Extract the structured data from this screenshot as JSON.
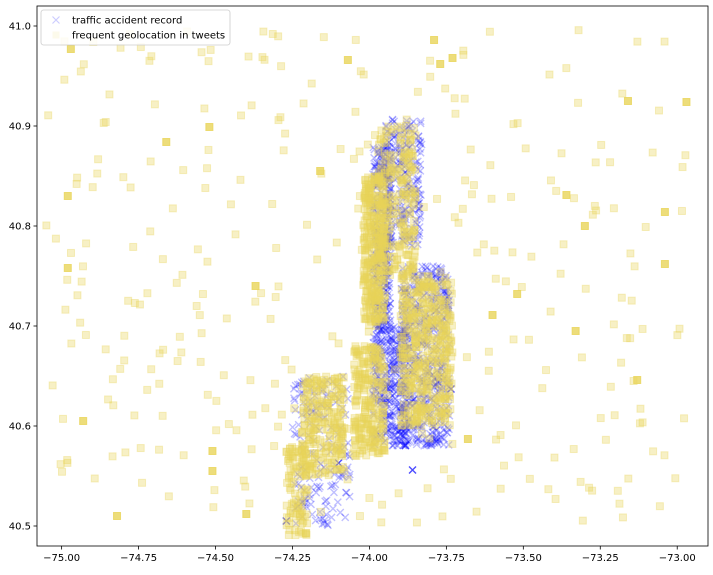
{
  "chart_data": {
    "type": "scatter",
    "title": "",
    "xlabel": "",
    "ylabel": "",
    "xlim": [
      -75.08,
      -72.9
    ],
    "ylim": [
      40.48,
      41.02
    ],
    "xticks": [
      -75.0,
      -74.75,
      -74.5,
      -74.25,
      -74.0,
      -73.75,
      -73.5,
      -73.25,
      -73.0
    ],
    "xtick_labels": [
      "−75.00",
      "−74.75",
      "−74.50",
      "−74.25",
      "−74.00",
      "−73.75",
      "−73.50",
      "−73.25",
      "−73.00"
    ],
    "yticks": [
      40.5,
      40.6,
      40.7,
      40.8,
      40.9,
      41.0
    ],
    "ytick_labels": [
      "40.5",
      "40.6",
      "40.7",
      "40.8",
      "40.9",
      "41.0"
    ],
    "grid": false,
    "legend_position": "upper-left",
    "series": [
      {
        "name": "traffic accident record",
        "marker": "x",
        "color": "#0000ff",
        "alpha": 0.25,
        "clusters": [
          {
            "x": [
              -73.99,
              -73.93
            ],
            "y": [
              40.7,
              40.88
            ],
            "n": 340
          },
          {
            "x": [
              -73.95,
              -73.83
            ],
            "y": [
              40.78,
              40.91
            ],
            "n": 240
          },
          {
            "x": [
              -73.9,
              -73.74
            ],
            "y": [
              40.58,
              40.76
            ],
            "n": 520
          },
          {
            "x": [
              -73.99,
              -73.88
            ],
            "y": [
              40.58,
              40.7
            ],
            "n": 360
          },
          {
            "x": [
              -74.25,
              -74.06
            ],
            "y": [
              40.5,
              40.65
            ],
            "n": 160
          }
        ],
        "points": [
          {
            "x": -73.735,
            "y": 40.637
          },
          {
            "x": -73.86,
            "y": 40.556
          },
          {
            "x": -74.27,
            "y": 40.505
          },
          {
            "x": -74.1,
            "y": 40.563
          }
        ]
      },
      {
        "name": "frequent geolocation in tweets",
        "marker": "s",
        "color": "#e8d45a",
        "alpha": 0.35,
        "clusters": [
          {
            "x": [
              -74.02,
              -73.95
            ],
            "y": [
              40.7,
              40.85
            ],
            "n": 300
          },
          {
            "x": [
              -73.97,
              -73.85
            ],
            "y": [
              40.75,
              40.9
            ],
            "n": 220
          },
          {
            "x": [
              -73.9,
              -73.73
            ],
            "y": [
              40.6,
              40.75
            ],
            "n": 420
          },
          {
            "x": [
              -74.05,
              -73.95
            ],
            "y": [
              40.57,
              40.68
            ],
            "n": 220
          },
          {
            "x": [
              -74.22,
              -74.08
            ],
            "y": [
              40.55,
              40.65
            ],
            "n": 220
          },
          {
            "x": [
              -74.27,
              -74.2
            ],
            "y": [
              40.49,
              40.58
            ],
            "n": 90
          },
          {
            "x": [
              -75.05,
              -72.95
            ],
            "y": [
              40.5,
              41.0
            ],
            "n": 320
          }
        ],
        "points": [
          {
            "x": -74.97,
            "y": 40.977
          },
          {
            "x": -74.98,
            "y": 40.83
          },
          {
            "x": -74.98,
            "y": 40.758
          },
          {
            "x": -74.93,
            "y": 40.605
          },
          {
            "x": -74.82,
            "y": 40.51
          },
          {
            "x": -74.66,
            "y": 40.884
          },
          {
            "x": -74.52,
            "y": 40.899
          },
          {
            "x": -74.51,
            "y": 40.575
          },
          {
            "x": -74.51,
            "y": 40.555
          },
          {
            "x": -74.4,
            "y": 40.512
          },
          {
            "x": -74.37,
            "y": 40.74
          },
          {
            "x": -74.16,
            "y": 40.855
          },
          {
            "x": -74.07,
            "y": 40.966
          },
          {
            "x": -73.79,
            "y": 40.986
          },
          {
            "x": -73.77,
            "y": 40.962
          },
          {
            "x": -73.73,
            "y": 40.968
          },
          {
            "x": -73.68,
            "y": 40.587
          },
          {
            "x": -73.6,
            "y": 40.711
          },
          {
            "x": -73.52,
            "y": 40.732
          },
          {
            "x": -73.36,
            "y": 40.831
          },
          {
            "x": -73.33,
            "y": 40.695
          },
          {
            "x": -73.3,
            "y": 40.8
          },
          {
            "x": -73.16,
            "y": 40.925
          },
          {
            "x": -73.04,
            "y": 40.814
          },
          {
            "x": -73.04,
            "y": 40.762
          },
          {
            "x": -72.97,
            "y": 40.924
          },
          {
            "x": -73.13,
            "y": 40.646
          }
        ]
      }
    ]
  }
}
